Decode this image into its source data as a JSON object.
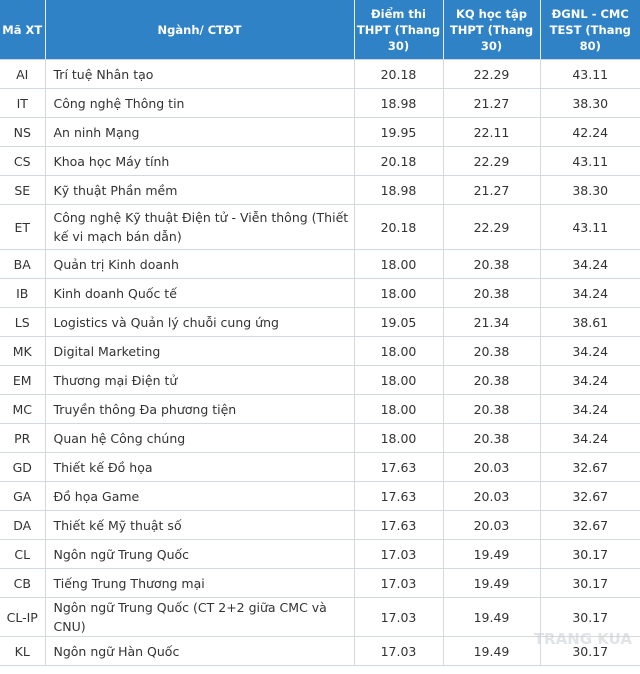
{
  "table": {
    "headers": [
      "Mã XT",
      "Ngành/ CTĐT",
      "Điểm thi THPT (Thang 30)",
      "KQ học tập THPT (Thang 30)",
      "ĐGNL - CMC TEST (Thang 80)"
    ],
    "rows": [
      {
        "code": "AI",
        "name": "Trí tuệ Nhân tạo",
        "thpt": "20.18",
        "kq": "22.29",
        "dgnl": "43.11"
      },
      {
        "code": "IT",
        "name": "Công nghệ Thông tin",
        "thpt": "18.98",
        "kq": "21.27",
        "dgnl": "38.30"
      },
      {
        "code": "NS",
        "name": "An ninh Mạng",
        "thpt": "19.95",
        "kq": "22.11",
        "dgnl": "42.24"
      },
      {
        "code": "CS",
        "name": "Khoa học Máy tính",
        "thpt": "20.18",
        "kq": "22.29",
        "dgnl": "43.11"
      },
      {
        "code": "SE",
        "name": "Kỹ thuật Phần mềm",
        "thpt": "18.98",
        "kq": "21.27",
        "dgnl": "38.30"
      },
      {
        "code": "ET",
        "name": "Công nghệ Kỹ thuật Điện tử - Viễn thông (Thiết kế vi mạch bán dẫn)",
        "thpt": "20.18",
        "kq": "22.29",
        "dgnl": "43.11"
      },
      {
        "code": "BA",
        "name": "Quản trị Kinh doanh",
        "thpt": "18.00",
        "kq": "20.38",
        "dgnl": "34.24"
      },
      {
        "code": "IB",
        "name": "Kinh doanh Quốc tế",
        "thpt": "18.00",
        "kq": "20.38",
        "dgnl": "34.24"
      },
      {
        "code": "LS",
        "name": "Logistics và Quản lý chuỗi cung ứng",
        "thpt": "19.05",
        "kq": "21.34",
        "dgnl": "38.61"
      },
      {
        "code": "MK",
        "name": "Digital Marketing",
        "thpt": "18.00",
        "kq": "20.38",
        "dgnl": "34.24"
      },
      {
        "code": "EM",
        "name": "Thương mại Điện tử",
        "thpt": "18.00",
        "kq": "20.38",
        "dgnl": "34.24"
      },
      {
        "code": "MC",
        "name": "Truyền thông Đa phương tiện",
        "thpt": "18.00",
        "kq": "20.38",
        "dgnl": "34.24"
      },
      {
        "code": "PR",
        "name": "Quan hệ Công chúng",
        "thpt": "18.00",
        "kq": "20.38",
        "dgnl": "34.24"
      },
      {
        "code": "GD",
        "name": "Thiết kế Đồ họa",
        "thpt": "17.63",
        "kq": "20.03",
        "dgnl": "32.67"
      },
      {
        "code": "GA",
        "name": "Đồ họa Game",
        "thpt": "17.63",
        "kq": "20.03",
        "dgnl": "32.67"
      },
      {
        "code": "DA",
        "name": "Thiết kế Mỹ thuật số",
        "thpt": "17.63",
        "kq": "20.03",
        "dgnl": "32.67"
      },
      {
        "code": "CL",
        "name": "Ngôn ngữ Trung Quốc",
        "thpt": "17.03",
        "kq": "19.49",
        "dgnl": "30.17"
      },
      {
        "code": "CB",
        "name": "Tiếng Trung Thương mại",
        "thpt": "17.03",
        "kq": "19.49",
        "dgnl": "30.17"
      },
      {
        "code": "CL-IP",
        "name": "Ngôn ngữ Trung Quốc (CT 2+2 giữa CMC và CNU)",
        "thpt": "17.03",
        "kq": "19.49",
        "dgnl": "30.17"
      },
      {
        "code": "KL",
        "name": "Ngôn ngữ Hàn Quốc",
        "thpt": "17.03",
        "kq": "19.49",
        "dgnl": "30.17"
      }
    ]
  },
  "colors": {
    "header_bg": "#2f82c5",
    "header_text": "#ffffff",
    "grid": "#d4d9df"
  },
  "watermark": "TRANG KUA"
}
